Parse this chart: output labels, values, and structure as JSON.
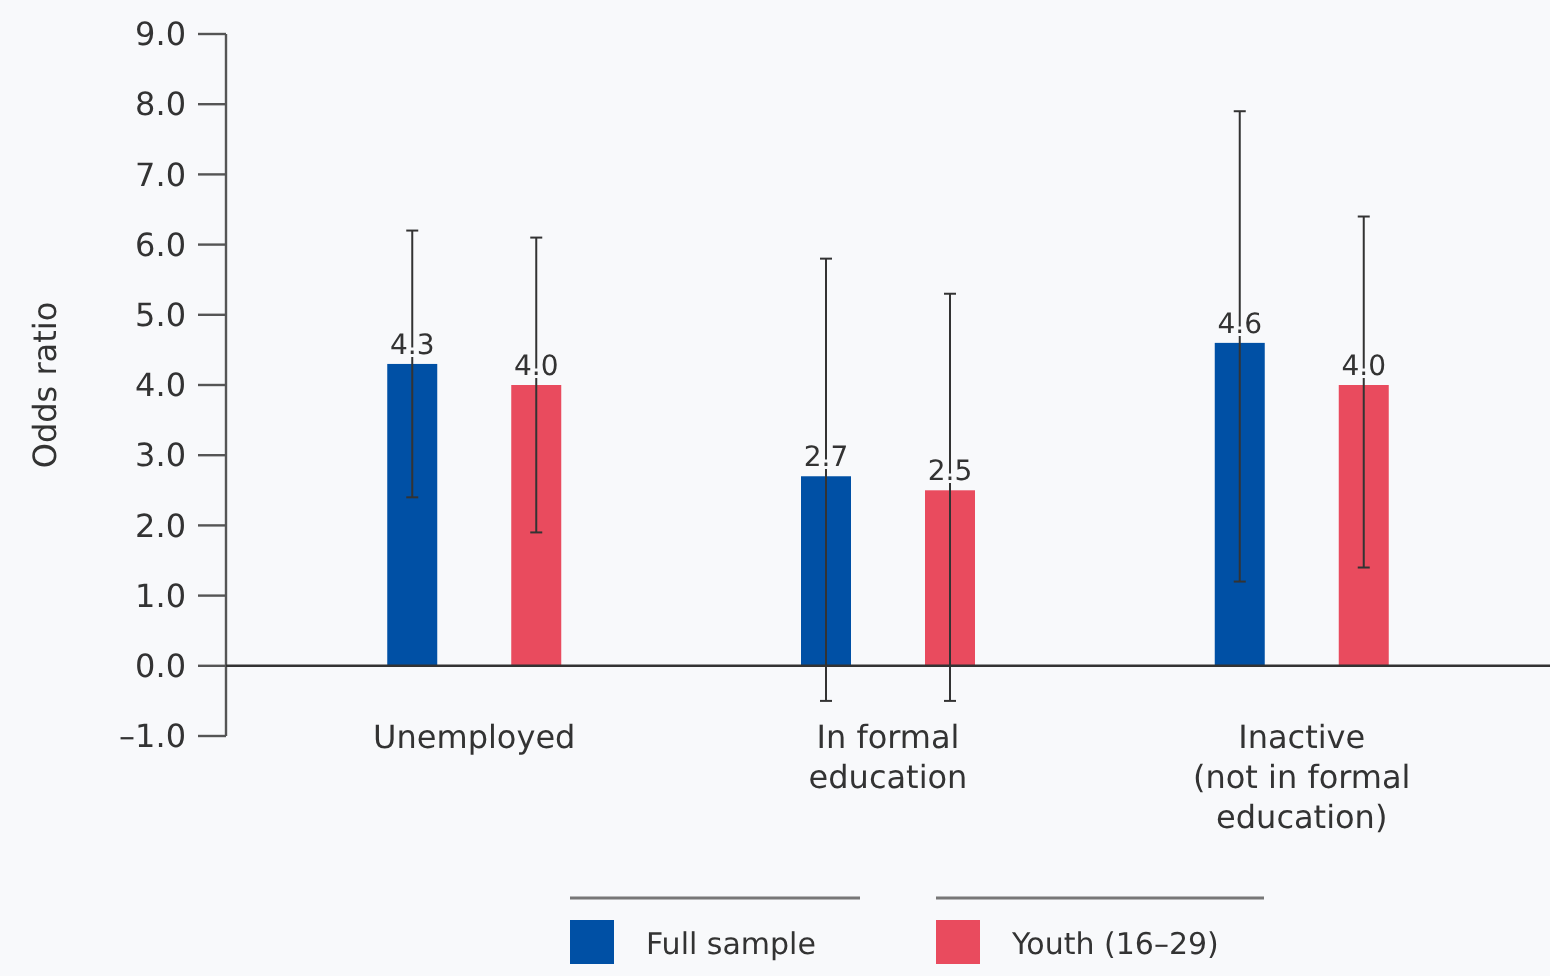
{
  "chart_data": {
    "type": "bar",
    "ylabel": "Odds ratio",
    "categories": [
      "Unemployed",
      "In formal education",
      "Inactive (not in formal education)"
    ],
    "series": [
      {
        "name": "Full sample",
        "color": "#0050a5",
        "values": [
          4.3,
          2.7,
          4.6
        ],
        "value_labels": [
          "4.3",
          "2.7",
          "4.6"
        ],
        "errors": [
          [
            2.4,
            6.2
          ],
          [
            -0.5,
            5.8
          ],
          [
            1.2,
            7.9
          ]
        ]
      },
      {
        "name": "Youth (16–29)",
        "color": "#e94b5e",
        "values": [
          4.0,
          2.5,
          4.0
        ],
        "value_labels": [
          "4.0",
          "2.5",
          "4.0"
        ],
        "errors": [
          [
            1.9,
            6.1
          ],
          [
            -0.5,
            5.3
          ],
          [
            1.4,
            6.4
          ]
        ]
      }
    ],
    "ylim": [
      -1,
      9
    ],
    "yticks": [
      {
        "value": -1,
        "label": "–1.0"
      },
      {
        "value": 0,
        "label": "0.0"
      },
      {
        "value": 1,
        "label": "1.0"
      },
      {
        "value": 2,
        "label": "2.0"
      },
      {
        "value": 3,
        "label": "3.0"
      },
      {
        "value": 4,
        "label": "4.0"
      },
      {
        "value": 5,
        "label": "5.0"
      },
      {
        "value": 6,
        "label": "6.0"
      },
      {
        "value": 7,
        "label": "7.0"
      },
      {
        "value": 8,
        "label": "8.0"
      },
      {
        "value": 9,
        "label": "9.0"
      }
    ],
    "legend": "bottom"
  }
}
